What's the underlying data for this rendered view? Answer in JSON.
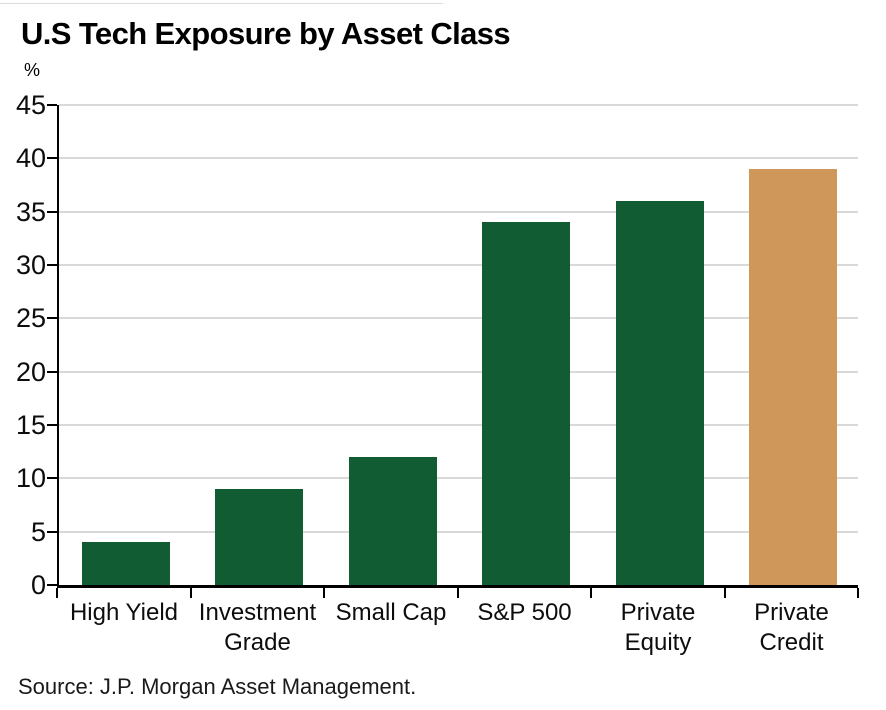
{
  "header": {
    "title": "U.S Tech Exposure by Asset Class"
  },
  "chart_data": {
    "type": "bar",
    "title": "U.S Tech Exposure by Asset Class",
    "unit_label": "%",
    "categories": [
      "High Yield",
      "Investment Grade",
      "Small Cap",
      "S&P 500",
      "Private Equity",
      "Private Credit"
    ],
    "values": [
      4,
      9,
      12,
      34,
      36,
      39
    ],
    "bar_colors": [
      "#115c33",
      "#115c33",
      "#115c33",
      "#115c33",
      "#115c33",
      "#d0975a"
    ],
    "xlabel": "",
    "ylabel": "%",
    "ylim": [
      0,
      45
    ],
    "yticks": [
      0,
      5,
      10,
      15,
      20,
      25,
      30,
      35,
      40,
      45
    ],
    "grid": "horizontal-light",
    "legend": "none"
  },
  "footer": {
    "source": "Source: J.P. Morgan Asset Management."
  },
  "colors": {
    "bar_green": "#115c33",
    "bar_orange": "#d0975a",
    "gridline": "#d9d9d9",
    "axis": "#000000",
    "background": "#ffffff"
  }
}
